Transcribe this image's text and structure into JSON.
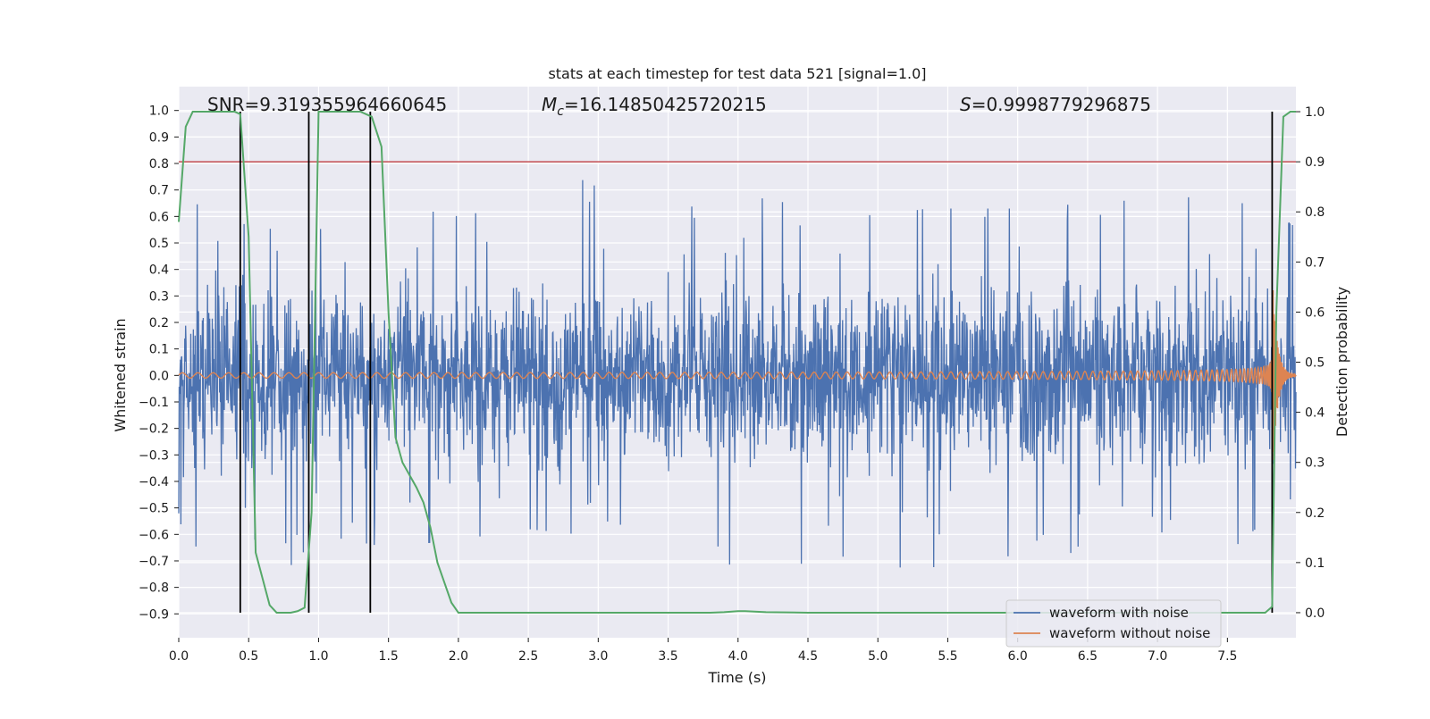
{
  "chart_data": {
    "type": "line",
    "title": "stats at each timestep for test data 521 [signal=1.0]",
    "xlabel": "Time (s)",
    "ylabel_left": "Whitened strain",
    "ylabel_right": "Detection probability",
    "xlim": [
      0.0,
      7.99
    ],
    "ylim_left": [
      -0.99,
      1.09
    ],
    "ylim_right": [
      -0.05,
      1.05
    ],
    "x_ticks": [
      "0.0",
      "0.5",
      "1.0",
      "1.5",
      "2.0",
      "2.5",
      "3.0",
      "3.5",
      "4.0",
      "4.5",
      "5.0",
      "5.5",
      "6.0",
      "6.5",
      "7.0",
      "7.5"
    ],
    "y_ticks_left": [
      "1.0",
      "0.9",
      "0.8",
      "0.7",
      "0.6",
      "0.5",
      "0.4",
      "0.3",
      "0.2",
      "0.1",
      "0.0",
      "−0.1",
      "−0.2",
      "−0.3",
      "−0.4",
      "−0.5",
      "−0.6",
      "−0.7",
      "−0.8",
      "−0.9"
    ],
    "y_ticks_right": [
      "1.0",
      "0.9",
      "0.8",
      "0.7",
      "0.6",
      "0.5",
      "0.4",
      "0.3",
      "0.2",
      "0.1",
      "0.0"
    ],
    "grid": true,
    "legend_position": "lower-right",
    "annotations": {
      "snr": "SNR=9.319355964660645",
      "mc_symbol": "M",
      "mc_sub": "c",
      "mc_value": "=16.14850425720215",
      "s_symbol": "S",
      "s_value": "=0.9998779296875"
    },
    "series": [
      {
        "name": "waveform with noise",
        "color": "#4c72b0",
        "axis": "left",
        "envelope": [
          {
            "x": 0.0,
            "upper": 0.45,
            "lower": -0.55
          },
          {
            "x": 0.27,
            "upper": 0.85,
            "lower": -0.76
          },
          {
            "x": 0.55,
            "upper": 0.63,
            "lower": -0.88
          },
          {
            "x": 1.0,
            "upper": 0.55,
            "lower": -0.6
          },
          {
            "x": 1.5,
            "upper": 0.65,
            "lower": -0.65
          },
          {
            "x": 2.0,
            "upper": 0.6,
            "lower": -0.62
          },
          {
            "x": 2.5,
            "upper": 0.65,
            "lower": -0.58
          },
          {
            "x": 3.2,
            "upper": 0.81,
            "lower": -0.62
          },
          {
            "x": 3.55,
            "upper": 0.63,
            "lower": -0.69
          },
          {
            "x": 4.2,
            "upper": 0.67,
            "lower": -0.73
          },
          {
            "x": 5.0,
            "upper": 0.6,
            "lower": -0.67
          },
          {
            "x": 5.35,
            "upper": 0.63,
            "lower": -0.79
          },
          {
            "x": 6.0,
            "upper": 0.63,
            "lower": -0.67
          },
          {
            "x": 6.5,
            "upper": 0.65,
            "lower": -0.67
          },
          {
            "x": 7.05,
            "upper": 0.67,
            "lower": -0.73
          },
          {
            "x": 7.5,
            "upper": 0.71,
            "lower": -0.67
          },
          {
            "x": 7.99,
            "upper": 0.56,
            "lower": -0.45
          }
        ]
      },
      {
        "name": "waveform without noise",
        "color": "#dd8452",
        "axis": "left",
        "chirp": {
          "t_start": 0.0,
          "t_end": 7.99,
          "merge_time": 7.82,
          "freq_start_hz": 9,
          "freq_end_hz": 140,
          "amp_start": 0.01,
          "amp_peak": 0.4
        }
      },
      {
        "name": "Detection probability",
        "color": "#55a868",
        "axis": "right",
        "x": [
          0.0,
          0.05,
          0.1,
          0.2,
          0.3,
          0.4,
          0.44,
          0.5,
          0.55,
          0.65,
          0.7,
          0.8,
          0.85,
          0.9,
          0.95,
          1.0,
          1.1,
          1.2,
          1.3,
          1.38,
          1.45,
          1.5,
          1.55,
          1.6,
          1.7,
          1.75,
          1.8,
          1.85,
          1.9,
          1.95,
          2.0,
          2.5,
          3.0,
          3.5,
          3.8,
          3.9,
          4.0,
          4.05,
          4.2,
          4.5,
          5.0,
          5.5,
          6.0,
          6.5,
          7.0,
          7.5,
          7.77,
          7.82,
          7.85,
          7.9,
          7.95,
          7.99
        ],
        "values": [
          0.78,
          0.97,
          1.0,
          1.0,
          1.0,
          1.0,
          0.995,
          0.75,
          0.12,
          0.015,
          0.0,
          0.0,
          0.003,
          0.01,
          0.2,
          1.0,
          1.0,
          1.0,
          1.0,
          0.99,
          0.93,
          0.6,
          0.35,
          0.3,
          0.25,
          0.22,
          0.17,
          0.1,
          0.06,
          0.02,
          0.0,
          0.0,
          0.0,
          0.0,
          0.0,
          0.001,
          0.003,
          0.003,
          0.001,
          0.0,
          0.0,
          0.0,
          0.0,
          0.0,
          0.0,
          0.0,
          0.0,
          0.012,
          0.6,
          0.99,
          1.0,
          1.0
        ]
      }
    ],
    "hlines": [
      {
        "y_right": 0.9,
        "color": "#c44e52"
      }
    ],
    "vlines": [
      {
        "x": 0.44,
        "color": "#000000",
        "y_right_min": 0.0,
        "y_right_max": 1.0
      },
      {
        "x": 0.93,
        "color": "#000000",
        "y_right_min": 0.0,
        "y_right_max": 1.0
      },
      {
        "x": 1.37,
        "color": "#000000",
        "y_right_min": 0.0,
        "y_right_max": 1.0
      },
      {
        "x": 7.82,
        "color": "#000000",
        "y_right_min": 0.0,
        "y_right_max": 1.0
      }
    ]
  },
  "colors": {
    "axes_background": "#eaeaf2",
    "grid": "#ffffff",
    "text": "#1a1a1a"
  }
}
